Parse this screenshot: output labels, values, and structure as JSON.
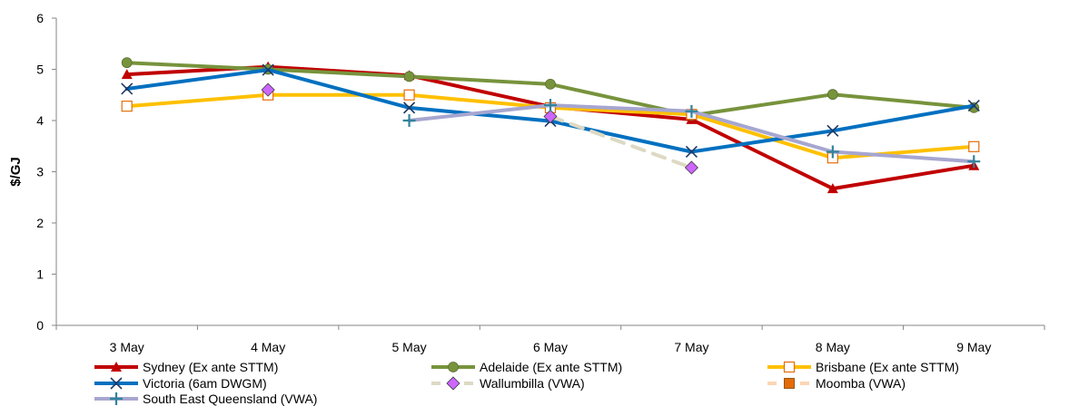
{
  "chart_data": {
    "type": "line",
    "title": "",
    "xlabel": "",
    "ylabel": "$/GJ",
    "ylim": [
      0,
      6
    ],
    "yticks": [
      "0",
      "1",
      "2",
      "3",
      "4",
      "5",
      "6"
    ],
    "grid": false,
    "legend_position": "bottom",
    "categories": [
      "3 May",
      "4 May",
      "5 May",
      "6 May",
      "7 May",
      "8 May",
      "9 May"
    ],
    "series": [
      {
        "name": "Sydney (Ex ante STTM)",
        "color": "#c00000",
        "marker": "triangle",
        "dash": false,
        "values": [
          4.9,
          5.05,
          4.88,
          4.27,
          4.02,
          2.67,
          3.12
        ]
      },
      {
        "name": "Adelaide (Ex ante STTM)",
        "color": "#77933c",
        "marker": "circle",
        "dash": false,
        "values": [
          5.13,
          5.0,
          4.86,
          4.71,
          4.1,
          4.51,
          4.25
        ]
      },
      {
        "name": "Brisbane (Ex ante STTM)",
        "color": "#ffc000",
        "marker": "square-open",
        "dash": false,
        "values": [
          4.28,
          4.5,
          4.5,
          4.25,
          4.12,
          3.27,
          3.49
        ]
      },
      {
        "name": "Victoria (6am DWGM)",
        "color": "#0070c0",
        "marker": "x",
        "dash": false,
        "values": [
          4.62,
          4.99,
          4.25,
          3.99,
          3.39,
          3.8,
          4.29
        ]
      },
      {
        "name": "Wallumbilla (VWA)",
        "color": "#ddd9c3",
        "marker": "diamond",
        "marker_color": "#cc66ff",
        "dash": true,
        "values": [
          null,
          4.6,
          null,
          4.08,
          3.08,
          null,
          null
        ]
      },
      {
        "name": "Moomba (VWA)",
        "color": "#fcd5b5",
        "marker": "square",
        "marker_color": "#e36c09",
        "dash": true,
        "values": [
          null,
          null,
          null,
          null,
          null,
          null,
          null
        ]
      },
      {
        "name": "South East Queensland (VWA)",
        "color": "#a6a6d0",
        "marker": "plus",
        "marker_color": "#31849b",
        "dash": false,
        "values": [
          null,
          null,
          4.0,
          4.3,
          4.18,
          3.39,
          3.2
        ]
      }
    ]
  }
}
